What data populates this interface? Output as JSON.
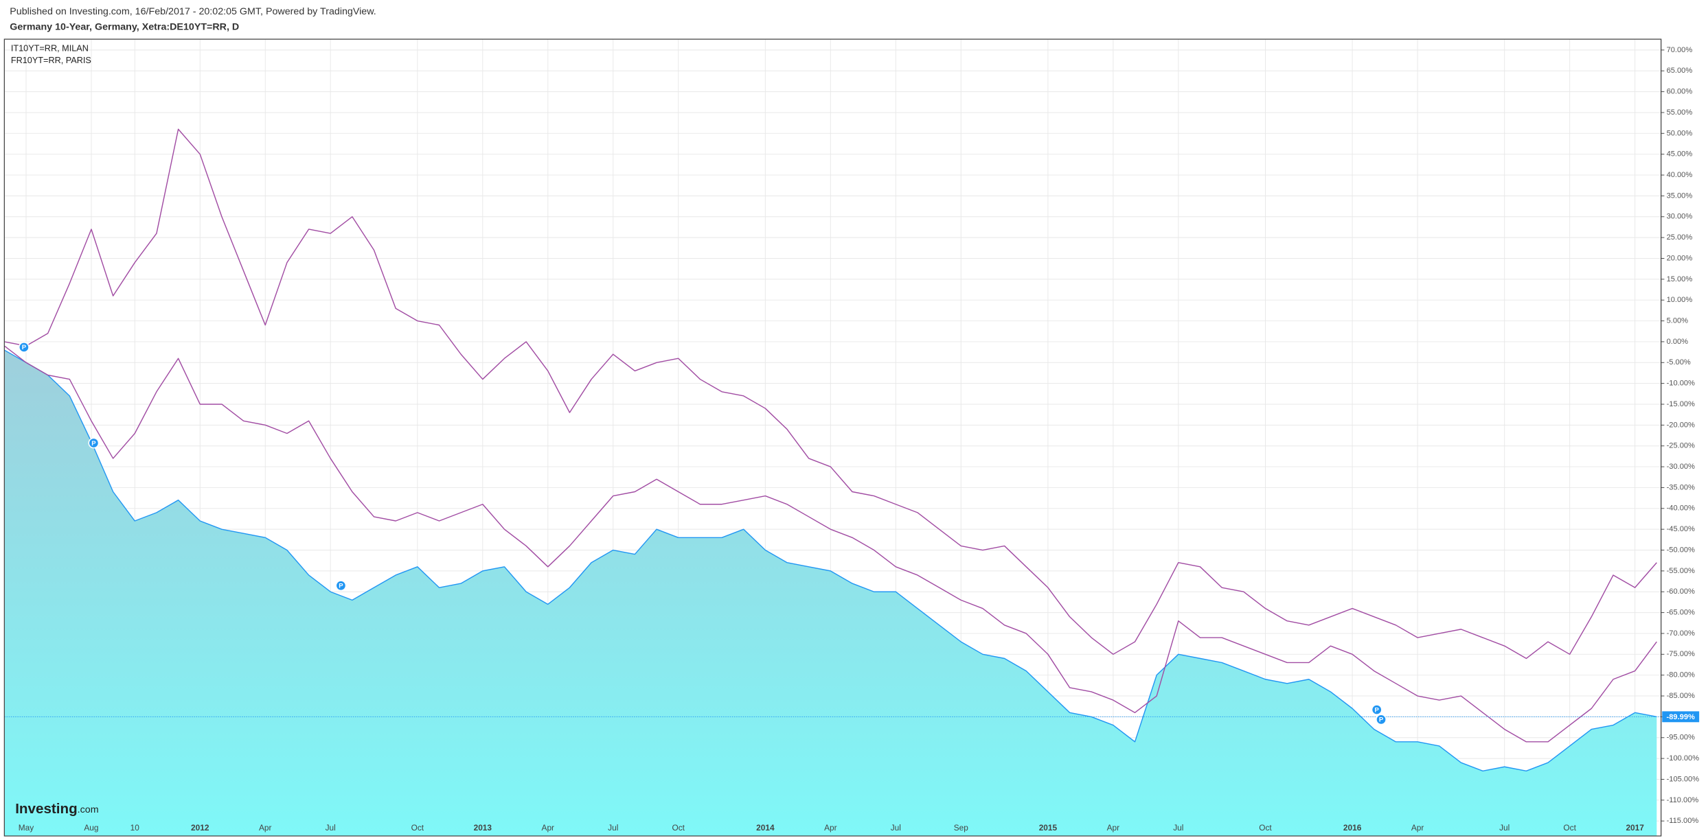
{
  "published": "Published on Investing.com, 16/Feb/2017 - 20:02:05 GMT, Powered by TradingView.",
  "logo": {
    "brand": "Investing",
    "suffix": ".com"
  },
  "event_marker_label": "P",
  "chart_data": {
    "type": "line",
    "title": "Germany 10-Year, Germany, Xetra:DE10YT=RR, D",
    "categories": [
      null,
      "May",
      null,
      null,
      "Aug",
      null,
      "10",
      null,
      null,
      "2012",
      null,
      null,
      "Apr",
      null,
      null,
      "Jul",
      null,
      null,
      null,
      "Oct",
      null,
      null,
      "2013",
      null,
      null,
      "Apr",
      null,
      null,
      "Jul",
      null,
      null,
      "Oct",
      null,
      null,
      null,
      "2014",
      null,
      null,
      "Apr",
      null,
      null,
      "Jul",
      null,
      null,
      "Sep",
      null,
      null,
      null,
      "2015",
      null,
      null,
      "Apr",
      null,
      null,
      "Jul",
      null,
      null,
      null,
      "Oct",
      null,
      null,
      null,
      "2016",
      null,
      null,
      "Apr",
      null,
      null,
      null,
      "Jul",
      null,
      null,
      "Oct",
      null,
      null,
      "2017",
      null
    ],
    "series": [
      {
        "color": "#2196f3",
        "area": true,
        "values": [
          -2,
          -5,
          -8,
          -13,
          -24,
          -36,
          -43,
          -41,
          -38,
          -43,
          -45,
          -46,
          -47,
          -50,
          -56,
          -60,
          -62,
          -59,
          -56,
          -54,
          -59,
          -58,
          -55,
          -54,
          -60,
          -63,
          -59,
          -53,
          -50,
          -51,
          -45,
          -47,
          -47,
          -47,
          -45,
          -50,
          -53,
          -54,
          -55,
          -58,
          -60,
          -60,
          -64,
          -68,
          -72,
          -75,
          -76,
          -79,
          -84,
          -89,
          -90,
          -92,
          -96,
          -80,
          -75,
          -76,
          -77,
          -79,
          -81,
          -82,
          -81,
          -84,
          -88,
          -93,
          -96,
          -96,
          -97,
          -101,
          -103,
          -102,
          -103,
          -101,
          -97,
          -93,
          -92,
          -89,
          -89.99
        ]
      },
      {
        "name": "IT10YT=RR, MILAN",
        "color": "#a14ca3",
        "values": [
          0,
          -1,
          2,
          14,
          27,
          11,
          19,
          26,
          51,
          45,
          30,
          17,
          4,
          19,
          27,
          26,
          30,
          22,
          8,
          5,
          4,
          -3,
          -9,
          -4,
          0,
          -7,
          -17,
          -9,
          -3,
          -7,
          -5,
          -4,
          -9,
          -12,
          -13,
          -16,
          -21,
          -28,
          -30,
          -36,
          -37,
          -39,
          -41,
          -45,
          -49,
          -50,
          -49,
          -54,
          -59,
          -66,
          -71,
          -75,
          -72,
          -63,
          -53,
          -54,
          -59,
          -60,
          -64,
          -67,
          -68,
          -66,
          -64,
          -66,
          -68,
          -71,
          -70,
          -69,
          -71,
          -73,
          -76,
          -72,
          -75,
          -66,
          -56,
          -59,
          -53
        ]
      },
      {
        "name": "FR10YT=RR, PARIS",
        "color": "#a14ca3",
        "values": [
          -1,
          -5,
          -8,
          -9,
          -19,
          -28,
          -22,
          -12,
          -4,
          -15,
          -15,
          -19,
          -20,
          -22,
          -19,
          -28,
          -36,
          -42,
          -43,
          -41,
          -43,
          -41,
          -39,
          -45,
          -49,
          -54,
          -49,
          -43,
          -37,
          -36,
          -33,
          -36,
          -39,
          -39,
          -38,
          -37,
          -39,
          -42,
          -45,
          -47,
          -50,
          -54,
          -56,
          -59,
          -62,
          -64,
          -68,
          -70,
          -75,
          -83,
          -84,
          -86,
          -89,
          -85,
          -67,
          -71,
          -71,
          -73,
          -75,
          -77,
          -77,
          -73,
          -75,
          -79,
          -82,
          -85,
          -86,
          -85,
          -89,
          -93,
          -96,
          -96,
          -92,
          -88,
          -81,
          -79,
          -72
        ]
      }
    ],
    "last_value_label": "-89.99%",
    "ylim": [
      -118.6,
      72.6
    ],
    "yticks": [
      {
        "value": 70,
        "label": "70.00%"
      },
      {
        "value": 65,
        "label": "65.00%"
      },
      {
        "value": 60,
        "label": "60.00%"
      },
      {
        "value": 55,
        "label": "55.00%"
      },
      {
        "value": 50,
        "label": "50.00%"
      },
      {
        "value": 45,
        "label": "45.00%"
      },
      {
        "value": 40,
        "label": "40.00%"
      },
      {
        "value": 35,
        "label": "35.00%"
      },
      {
        "value": 30,
        "label": "30.00%"
      },
      {
        "value": 25,
        "label": "25.00%"
      },
      {
        "value": 20,
        "label": "20.00%"
      },
      {
        "value": 15,
        "label": "15.00%"
      },
      {
        "value": 10,
        "label": "10.00%"
      },
      {
        "value": 5,
        "label": "5.00%"
      },
      {
        "value": 0,
        "label": "0.00%"
      },
      {
        "value": -5,
        "label": "-5.00%"
      },
      {
        "value": -10,
        "label": "-10.00%"
      },
      {
        "value": -15,
        "label": "-15.00%"
      },
      {
        "value": -20,
        "label": "-20.00%"
      },
      {
        "value": -25,
        "label": "-25.00%"
      },
      {
        "value": -30,
        "label": "-30.00%"
      },
      {
        "value": -35,
        "label": "-35.00%"
      },
      {
        "value": -40,
        "label": "-40.00%"
      },
      {
        "value": -45,
        "label": "-45.00%"
      },
      {
        "value": -50,
        "label": "-50.00%"
      },
      {
        "value": -55,
        "label": "-55.00%"
      },
      {
        "value": -60,
        "label": "-60.00%"
      },
      {
        "value": -65,
        "label": "-65.00%"
      },
      {
        "value": -70,
        "label": "-70.00%"
      },
      {
        "value": -75,
        "label": "-75.00%"
      },
      {
        "value": -80,
        "label": "-80.00%"
      },
      {
        "value": -85,
        "label": "-85.00%"
      },
      {
        "value": -90,
        "label": "-90.00%"
      },
      {
        "value": -95,
        "label": "-95.00%"
      },
      {
        "value": -100,
        "label": "-100.00%"
      },
      {
        "value": -105,
        "label": "-105.00%"
      },
      {
        "value": -110,
        "label": "-110.00%"
      },
      {
        "value": -115,
        "label": "-115.00%"
      }
    ],
    "grid": true
  }
}
